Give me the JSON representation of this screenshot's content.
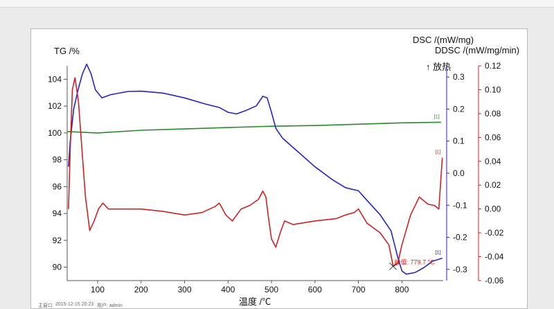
{
  "chart_data": {
    "type": "line",
    "xlabel": "温度 /℃",
    "x_ticks": [
      100,
      200,
      300,
      400,
      500,
      600,
      700,
      800
    ],
    "x_range": [
      30,
      895
    ],
    "axes": {
      "tg": {
        "label": "TG /%",
        "range": [
          89,
          105
        ],
        "ticks": [
          90,
          92,
          94,
          96,
          98,
          100,
          102,
          104
        ]
      },
      "dsc": {
        "label": "DSC /(mW/mg)",
        "exo": "↑ 放热",
        "range": [
          -0.335,
          0.335
        ],
        "ticks": [
          0.3,
          0.2,
          0.1,
          0.0,
          -0.1,
          -0.2,
          -0.3
        ],
        "tick_labels": [
          "0.3",
          "0.2",
          "0.1",
          "0.0",
          "-0.1",
          "-0.2",
          "-0.3"
        ]
      },
      "ddsc": {
        "label": "DDSC /(mW/mg/min)",
        "range": [
          -0.06,
          0.12
        ],
        "ticks": [
          0.12,
          0.1,
          0.08,
          0.06,
          0.04,
          0.02,
          0.0,
          -0.02,
          -0.04,
          -0.06
        ],
        "tick_labels": [
          "0.12",
          "0.10",
          "0.08",
          "0.06",
          "0.04",
          "0.02",
          "0.00",
          "-0.02",
          "-0.04",
          "-0.06"
        ]
      }
    },
    "series": [
      {
        "axis": "tg",
        "color": "#2a8a2a",
        "points": [
          [
            30,
            100.1
          ],
          [
            100,
            100.0
          ],
          [
            200,
            100.2
          ],
          [
            300,
            100.3
          ],
          [
            400,
            100.4
          ],
          [
            500,
            100.5
          ],
          [
            600,
            100.55
          ],
          [
            700,
            100.65
          ],
          [
            800,
            100.75
          ],
          [
            890,
            100.8
          ]
        ],
        "end_label": "[1]"
      },
      {
        "axis": "dsc",
        "color": "#2222c8",
        "points": [
          [
            33,
            0.02
          ],
          [
            37,
            0.1
          ],
          [
            45,
            0.2
          ],
          [
            55,
            0.26
          ],
          [
            65,
            0.31
          ],
          [
            75,
            0.34
          ],
          [
            85,
            0.31
          ],
          [
            95,
            0.26
          ],
          [
            110,
            0.235
          ],
          [
            130,
            0.245
          ],
          [
            170,
            0.255
          ],
          [
            200,
            0.256
          ],
          [
            250,
            0.25
          ],
          [
            300,
            0.235
          ],
          [
            350,
            0.215
          ],
          [
            380,
            0.205
          ],
          [
            400,
            0.19
          ],
          [
            420,
            0.185
          ],
          [
            440,
            0.195
          ],
          [
            465,
            0.21
          ],
          [
            480,
            0.24
          ],
          [
            490,
            0.235
          ],
          [
            500,
            0.19
          ],
          [
            510,
            0.14
          ],
          [
            525,
            0.11
          ],
          [
            550,
            0.08
          ],
          [
            600,
            0.02
          ],
          [
            640,
            -0.02
          ],
          [
            670,
            -0.045
          ],
          [
            700,
            -0.055
          ],
          [
            720,
            -0.085
          ],
          [
            750,
            -0.13
          ],
          [
            775,
            -0.18
          ],
          [
            790,
            -0.26
          ],
          [
            800,
            -0.305
          ],
          [
            810,
            -0.315
          ],
          [
            830,
            -0.31
          ],
          [
            850,
            -0.295
          ],
          [
            870,
            -0.275
          ],
          [
            893,
            -0.265
          ]
        ],
        "end_label": "[1]"
      },
      {
        "axis": "ddsc",
        "color": "#cc2222",
        "points": [
          [
            33,
            0.0
          ],
          [
            37,
            0.05
          ],
          [
            42,
            0.1
          ],
          [
            48,
            0.11
          ],
          [
            56,
            0.09
          ],
          [
            64,
            0.05
          ],
          [
            72,
            0.01
          ],
          [
            82,
            -0.018
          ],
          [
            92,
            -0.01
          ],
          [
            102,
            0.0
          ],
          [
            112,
            0.005
          ],
          [
            125,
            0.0
          ],
          [
            150,
            0.0
          ],
          [
            200,
            0.0
          ],
          [
            250,
            -0.002
          ],
          [
            300,
            -0.005
          ],
          [
            340,
            -0.003
          ],
          [
            370,
            0.002
          ],
          [
            380,
            0.005
          ],
          [
            395,
            -0.005
          ],
          [
            410,
            -0.01
          ],
          [
            430,
            0.0
          ],
          [
            450,
            0.003
          ],
          [
            470,
            0.008
          ],
          [
            480,
            0.015
          ],
          [
            487,
            0.01
          ],
          [
            494,
            -0.01
          ],
          [
            500,
            -0.025
          ],
          [
            510,
            -0.032
          ],
          [
            520,
            -0.02
          ],
          [
            530,
            -0.01
          ],
          [
            550,
            -0.013
          ],
          [
            600,
            -0.01
          ],
          [
            650,
            -0.008
          ],
          [
            670,
            -0.005
          ],
          [
            690,
            -0.003
          ],
          [
            700,
            0.0
          ],
          [
            720,
            -0.012
          ],
          [
            750,
            -0.02
          ],
          [
            770,
            -0.03
          ],
          [
            780,
            -0.048
          ],
          [
            790,
            -0.046
          ],
          [
            800,
            -0.03
          ],
          [
            820,
            -0.005
          ],
          [
            840,
            0.01
          ],
          [
            860,
            0.004
          ],
          [
            875,
            0.003
          ],
          [
            885,
            0.0
          ],
          [
            893,
            0.043
          ]
        ],
        "end_label": "[1]"
      }
    ],
    "annotations": {
      "peak_label": "峰值: 779.7 °C",
      "peak_x": 779.7
    },
    "footer": {
      "instrument_label": "主窗口",
      "datetime": "2015-12-15 20:23",
      "user_label": "用户: admin"
    }
  }
}
